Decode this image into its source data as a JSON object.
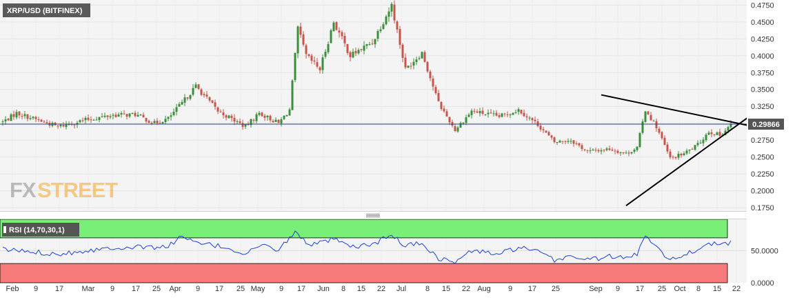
{
  "symbol_label": "XRP/USD (BITFINEX)",
  "watermark": {
    "fx": "FX",
    "street": "STREET"
  },
  "colors": {
    "up": "#3a8f3a",
    "down": "#c7554a",
    "price_line": "#1f3f8f",
    "price_badge": "#555555",
    "rsi_line": "#1a3fd6",
    "rsi_overbought": "#78f078",
    "rsi_oversold": "#f77a7a",
    "trendline": "#000000"
  },
  "chart_data": [
    {
      "type": "candlestick",
      "title": "XRP/USD (BITFINEX)",
      "y_ticks": [
        "0.4750",
        "0.4500",
        "0.4250",
        "0.4000",
        "0.3750",
        "0.3500",
        "0.3250",
        "0.3000",
        "0.2750",
        "0.2500",
        "0.2250",
        "0.2000",
        "0.1750"
      ],
      "ylim": [
        0.17,
        0.4825
      ],
      "current_price": 0.29866,
      "current_price_label": "0.29866",
      "x_ticks": [
        "Feb",
        "9",
        "17",
        "Mar",
        "9",
        "17",
        "25",
        "Apr",
        "9",
        "17",
        "25",
        "May",
        "9",
        "17",
        "Jun",
        "8",
        "15",
        "22",
        "Jul",
        "8",
        "15",
        "22",
        "Aug",
        "9",
        "17",
        "25",
        "Sep",
        "9",
        "17",
        "25",
        "Oct",
        "8",
        "15",
        "22"
      ],
      "anchors": [
        {
          "i": 0,
          "c": 0.302
        },
        {
          "i": 5,
          "c": 0.315
        },
        {
          "i": 20,
          "c": 0.295
        },
        {
          "i": 30,
          "c": 0.305
        },
        {
          "i": 40,
          "c": 0.312
        },
        {
          "i": 48,
          "c": 0.313
        },
        {
          "i": 55,
          "c": 0.3
        },
        {
          "i": 60,
          "c": 0.307
        },
        {
          "i": 65,
          "c": 0.33
        },
        {
          "i": 70,
          "c": 0.355
        },
        {
          "i": 78,
          "c": 0.318
        },
        {
          "i": 88,
          "c": 0.295
        },
        {
          "i": 93,
          "c": 0.315
        },
        {
          "i": 100,
          "c": 0.3
        },
        {
          "i": 104,
          "c": 0.32
        },
        {
          "i": 107,
          "c": 0.44
        },
        {
          "i": 110,
          "c": 0.4
        },
        {
          "i": 115,
          "c": 0.38
        },
        {
          "i": 120,
          "c": 0.45
        },
        {
          "i": 126,
          "c": 0.4
        },
        {
          "i": 134,
          "c": 0.42
        },
        {
          "i": 141,
          "c": 0.475
        },
        {
          "i": 146,
          "c": 0.38
        },
        {
          "i": 152,
          "c": 0.405
        },
        {
          "i": 158,
          "c": 0.33
        },
        {
          "i": 164,
          "c": 0.29
        },
        {
          "i": 170,
          "c": 0.318
        },
        {
          "i": 180,
          "c": 0.31
        },
        {
          "i": 187,
          "c": 0.32
        },
        {
          "i": 194,
          "c": 0.298
        },
        {
          "i": 200,
          "c": 0.272
        },
        {
          "i": 206,
          "c": 0.275
        },
        {
          "i": 212,
          "c": 0.258
        },
        {
          "i": 220,
          "c": 0.262
        },
        {
          "i": 226,
          "c": 0.255
        },
        {
          "i": 230,
          "c": 0.264
        },
        {
          "i": 233,
          "c": 0.32
        },
        {
          "i": 237,
          "c": 0.295
        },
        {
          "i": 242,
          "c": 0.248
        },
        {
          "i": 247,
          "c": 0.255
        },
        {
          "i": 252,
          "c": 0.268
        },
        {
          "i": 256,
          "c": 0.288
        },
        {
          "i": 260,
          "c": 0.282
        },
        {
          "i": 264,
          "c": 0.298
        }
      ],
      "trendlines": [
        {
          "name": "resistance",
          "from": {
            "i": 217,
            "p": 0.342
          },
          "to": {
            "i": 270,
            "p": 0.297
          }
        },
        {
          "name": "support",
          "from": {
            "i": 226,
            "p": 0.178
          },
          "to": {
            "i": 270,
            "p": 0.308
          }
        }
      ]
    },
    {
      "type": "line",
      "title": "RSI (14,70,30,1)",
      "y_ticks": [
        "50.0000",
        "0.0000"
      ],
      "ylim": [
        0,
        100
      ],
      "zones": {
        "overbought": 70,
        "oversold": 30
      },
      "anchors": [
        {
          "i": 0,
          "v": 52
        },
        {
          "i": 20,
          "v": 45
        },
        {
          "i": 40,
          "v": 55
        },
        {
          "i": 60,
          "v": 56
        },
        {
          "i": 64,
          "v": 72
        },
        {
          "i": 70,
          "v": 62
        },
        {
          "i": 80,
          "v": 56
        },
        {
          "i": 88,
          "v": 45
        },
        {
          "i": 93,
          "v": 58
        },
        {
          "i": 100,
          "v": 52
        },
        {
          "i": 106,
          "v": 78
        },
        {
          "i": 112,
          "v": 58
        },
        {
          "i": 120,
          "v": 68
        },
        {
          "i": 126,
          "v": 55
        },
        {
          "i": 134,
          "v": 60
        },
        {
          "i": 141,
          "v": 74
        },
        {
          "i": 146,
          "v": 58
        },
        {
          "i": 152,
          "v": 62
        },
        {
          "i": 158,
          "v": 38
        },
        {
          "i": 164,
          "v": 32
        },
        {
          "i": 170,
          "v": 50
        },
        {
          "i": 180,
          "v": 45
        },
        {
          "i": 187,
          "v": 55
        },
        {
          "i": 194,
          "v": 48
        },
        {
          "i": 200,
          "v": 35
        },
        {
          "i": 206,
          "v": 42
        },
        {
          "i": 212,
          "v": 36
        },
        {
          "i": 220,
          "v": 41
        },
        {
          "i": 226,
          "v": 38
        },
        {
          "i": 230,
          "v": 45
        },
        {
          "i": 233,
          "v": 75
        },
        {
          "i": 237,
          "v": 58
        },
        {
          "i": 242,
          "v": 35
        },
        {
          "i": 247,
          "v": 44
        },
        {
          "i": 252,
          "v": 52
        },
        {
          "i": 256,
          "v": 63
        },
        {
          "i": 260,
          "v": 58
        },
        {
          "i": 264,
          "v": 62
        }
      ]
    }
  ]
}
